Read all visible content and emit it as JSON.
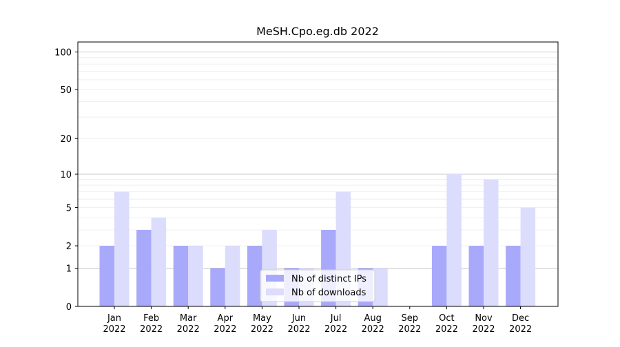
{
  "chart_data": {
    "type": "bar",
    "title": "MeSH.Cpo.eg.db 2022",
    "xlabel": "",
    "ylabel": "",
    "yscale": "log1p",
    "ylim": [
      0,
      120
    ],
    "y_ticks": [
      0,
      1,
      2,
      5,
      10,
      20,
      50,
      100
    ],
    "categories": [
      "Jan\n2022",
      "Feb\n2022",
      "Mar\n2022",
      "Apr\n2022",
      "May\n2022",
      "Jun\n2022",
      "Jul\n2022",
      "Aug\n2022",
      "Sep\n2022",
      "Oct\n2022",
      "Nov\n2022",
      "Dec\n2022"
    ],
    "series": [
      {
        "name": "Nb of distinct IPs",
        "color": "#a9a9fb",
        "values": [
          2,
          3,
          2,
          1,
          2,
          1,
          3,
          1,
          0,
          2,
          2,
          2
        ]
      },
      {
        "name": "Nb of downloads",
        "color": "#dcdcfc",
        "values": [
          7,
          4,
          2,
          2,
          3,
          1,
          7,
          1,
          0,
          10,
          9,
          5
        ]
      }
    ],
    "grid": true,
    "legend_position": "bottom-center"
  }
}
